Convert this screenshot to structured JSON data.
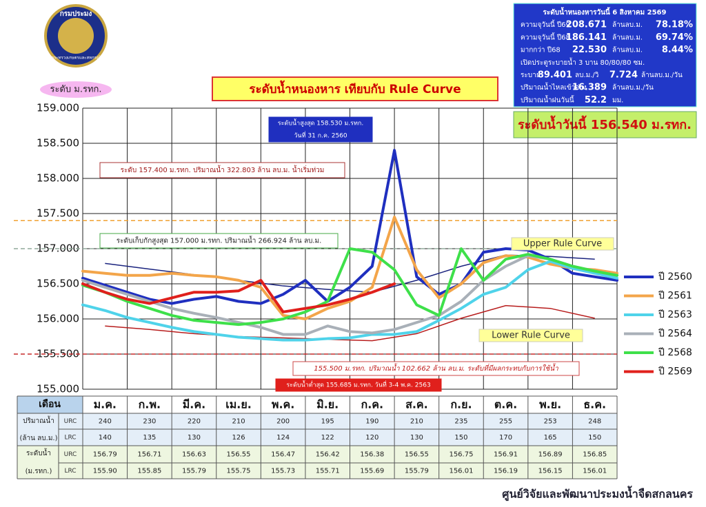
{
  "header": {
    "logo_top": "กรมประมง",
    "logo_bottom": "กระทรวงเกษตรและสหกรณ์",
    "unit_badge": "ระดับ ม.รทก.",
    "today_level": "ระดับน้ำวันนี้ 156.540 ม.รทก.",
    "footer": "ศูนย์วิจัยและพัฒนาประมงน้ำจืดสกลนคร"
  },
  "info_box": {
    "lines": [
      [
        "ระดับน้ำหนองหารวันนี้ 6 สิงหาคม 2569"
      ],
      [
        "ความจุวันนี้ ปี69",
        "208.671",
        "ล้านลบ.ม.",
        "78.18%"
      ],
      [
        "ความจุวันนี้ ปี68",
        "186.141",
        "ล้านลบ.ม.",
        "69.74%"
      ],
      [
        "มากกว่า ปี68",
        "22.530",
        "ล้านลบ.ม.",
        "8.44%"
      ],
      [
        "เปิดประตูระบายน้ำ 3 บาน 80/80/80 ซม."
      ],
      [
        "ระบาย",
        "89.401",
        "ลบ.ม./วิ",
        "7.724",
        "ล้านลบ.ม./วัน"
      ],
      [
        "ปริมาณน้ำไหลเข้าอ่าง",
        "16.389",
        "ล้านลบ.ม./วัน"
      ],
      [
        "ปริมาณน้ำฝนวันนี้",
        "52.2",
        "มม."
      ]
    ]
  },
  "chart_data": {
    "type": "line",
    "title": "ระดับน้ำหนองหาร เทียบกับ Rule Curve",
    "ylim": [
      155,
      159
    ],
    "yticks": [
      {
        "value": 155,
        "label": "155.000"
      },
      {
        "value": 155.5,
        "label": "155.500"
      },
      {
        "value": 156,
        "label": "156.000"
      },
      {
        "value": 156.5,
        "label": "156.500"
      },
      {
        "value": 157,
        "label": "157.000"
      },
      {
        "value": 157.5,
        "label": "157.500"
      },
      {
        "value": 158,
        "label": "158.000"
      },
      {
        "value": 158.5,
        "label": "158.500"
      },
      {
        "value": 159,
        "label": "159.000"
      }
    ],
    "grid": true,
    "series": [
      {
        "name": "ปี 2560",
        "color": "#1f2fbf",
        "values": [
          156.58,
          156.48,
          156.38,
          156.28,
          156.22,
          156.28,
          156.32,
          156.25,
          156.22,
          156.35,
          156.55,
          156.25,
          156.45,
          156.75,
          158.4,
          156.6,
          156.35,
          156.5,
          156.95,
          157.0,
          156.98,
          156.85,
          156.65,
          156.6,
          156.55
        ]
      },
      {
        "name": "ปี 2561",
        "color": "#f3a54a",
        "values": [
          156.68,
          156.65,
          156.62,
          156.62,
          156.65,
          156.62,
          156.6,
          156.55,
          156.45,
          156.05,
          156.0,
          156.15,
          156.25,
          156.45,
          157.45,
          156.7,
          156.3,
          156.5,
          156.8,
          156.9,
          156.88,
          156.78,
          156.72,
          156.7,
          156.65
        ]
      },
      {
        "name": "ปี 2563",
        "color": "#4fd3ea",
        "values": [
          156.2,
          156.12,
          156.02,
          155.95,
          155.88,
          155.82,
          155.78,
          155.74,
          155.72,
          155.7,
          155.7,
          155.72,
          155.73,
          155.78,
          155.78,
          155.82,
          155.98,
          156.15,
          156.35,
          156.45,
          156.7,
          156.82,
          156.72,
          156.65,
          156.58
        ]
      },
      {
        "name": "ปี 2564",
        "color": "#a9b0b8",
        "values": [
          156.55,
          156.45,
          156.35,
          156.25,
          156.15,
          156.08,
          156.02,
          155.95,
          155.88,
          155.78,
          155.78,
          155.9,
          155.82,
          155.8,
          155.85,
          155.95,
          156.05,
          156.25,
          156.55,
          156.75,
          156.9,
          156.85,
          156.75,
          156.68,
          156.62
        ]
      },
      {
        "name": "ปี 2568",
        "color": "#3ee04a",
        "values": [
          156.48,
          156.38,
          156.25,
          156.15,
          156.05,
          155.98,
          155.95,
          155.92,
          155.95,
          156.0,
          156.1,
          156.25,
          157.0,
          156.95,
          156.7,
          156.2,
          156.05,
          157.0,
          156.55,
          156.85,
          156.92,
          156.85,
          156.75,
          156.68,
          156.62
        ]
      },
      {
        "name": "ปี 2569",
        "color": "#e0201c",
        "values": [
          156.5,
          156.38,
          156.28,
          156.22,
          156.3,
          156.38,
          156.38,
          156.4,
          156.55,
          156.1,
          156.15,
          156.2,
          156.28,
          156.38,
          156.5,
          null,
          null,
          null,
          null,
          null,
          null,
          null,
          null,
          null,
          null
        ]
      }
    ],
    "rule_curves": [
      {
        "name": "Upper Rule Curve",
        "color": "#1a237e",
        "values": [
          156.79,
          156.71,
          156.63,
          156.55,
          156.47,
          156.42,
          156.38,
          156.55,
          156.75,
          156.91,
          156.89,
          156.85
        ]
      },
      {
        "name": "Lower Rule Curve",
        "color": "#b71c1c",
        "values": [
          155.9,
          155.85,
          155.79,
          155.75,
          155.73,
          155.71,
          155.69,
          155.79,
          156.01,
          156.19,
          156.15,
          156.01
        ]
      }
    ],
    "reference_lines": [
      {
        "value": 157.4,
        "color": "#f0a030"
      },
      {
        "value": 157,
        "color": "#8fa89a"
      },
      {
        "value": 155.5,
        "color": "#c62828"
      }
    ],
    "annotations": [
      {
        "lines": [
          "ระดับน้ำสูงสุด 158.530 ม.รทก.",
          "วันที่ 31 ก.ค. 2560"
        ]
      },
      {
        "lines": [
          "ระดับ 157.400 ม.รทก. ปริมาณน้ำ 322.803 ล้าน ลบ.ม. น้ำเริ่มท่วม"
        ]
      },
      {
        "lines": [
          "ระดับเก็บกักสูงสุด 157.000 ม.รทก. ปริมาณน้ำ 266.924 ล้าน ลบ.ม."
        ]
      },
      {
        "lines": [
          "155.500 ม.รทก. ปริมาณน้ำ 102.662 ล้าน ลบ.ม. ระดับที่มีผลกระทบกับการใช้น้ำ"
        ]
      },
      {
        "lines": [
          "ระดับน้ำต่ำสุด 155.685 ม.รทก. วันที่ 3-4 พ.ค. 2563"
        ]
      }
    ]
  },
  "table": {
    "header": "เดือน",
    "columns": [
      "ม.ค.",
      "ก.พ.",
      "มี.ค.",
      "เม.ย.",
      "พ.ค.",
      "มิ.ย.",
      "ก.ค.",
      "ส.ค.",
      "ก.ย.",
      "ต.ค.",
      "พ.ย.",
      "ธ.ค."
    ],
    "groups": [
      {
        "label": "ปริมาณน้ำ",
        "unit": "(ล้าน ลบ.ม.)",
        "rows": [
          {
            "name": "URC",
            "cells": [
              "240",
              "230",
              "220",
              "210",
              "200",
              "195",
              "190",
              "210",
              "235",
              "255",
              "253",
              "248"
            ]
          },
          {
            "name": "LRC",
            "cells": [
              "140",
              "135",
              "130",
              "126",
              "124",
              "122",
              "120",
              "130",
              "150",
              "170",
              "165",
              "150"
            ]
          }
        ]
      },
      {
        "label": "ระดับน้ำ",
        "unit": "(ม.รทก.)",
        "rows": [
          {
            "name": "URC",
            "cells": [
              "156.79",
              "156.71",
              "156.63",
              "156.55",
              "156.47",
              "156.42",
              "156.38",
              "156.55",
              "156.75",
              "156.91",
              "156.89",
              "156.85"
            ]
          },
          {
            "name": "LRC",
            "cells": [
              "155.90",
              "155.85",
              "155.79",
              "155.75",
              "155.73",
              "155.71",
              "155.69",
              "155.79",
              "156.01",
              "156.19",
              "156.15",
              "156.01"
            ]
          }
        ]
      }
    ]
  }
}
